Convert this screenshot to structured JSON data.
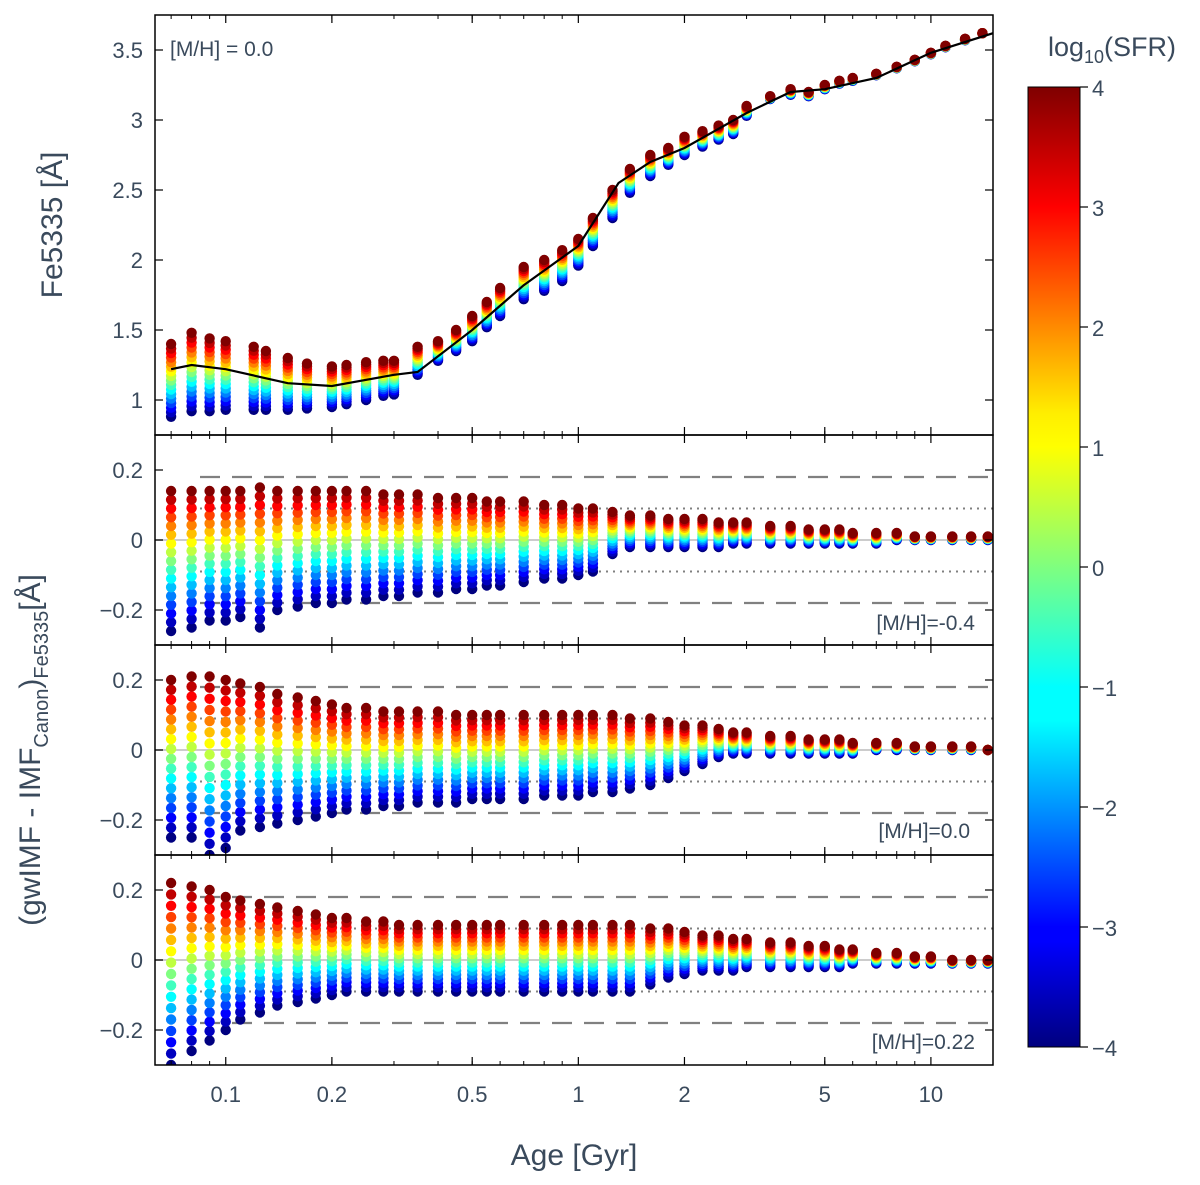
{
  "chart_data": {
    "type": "scatter",
    "colormap": "jet",
    "xlabel": "Age [Gyr]",
    "xscale": "log",
    "xlim": [
      0.063,
      15.0
    ],
    "x_ticks": [
      0.1,
      0.2,
      0.5,
      1,
      2,
      5,
      10
    ],
    "x_tick_labels": [
      "0.1",
      "0.2",
      "0.5",
      "1",
      "2",
      "5",
      "10"
    ],
    "colorbar": {
      "label_prefix": "log",
      "label_sub": "10",
      "label_suffix": "(SFR)",
      "range": [
        -4,
        4
      ],
      "ticks": [
        4,
        3,
        2,
        1,
        0,
        -1,
        -2,
        -3,
        -4
      ],
      "tick_labels": [
        "4",
        "3",
        "2",
        "1",
        "0",
        "−1",
        "−2",
        "−3",
        "−4"
      ]
    },
    "shared_ylabel": {
      "pre": "(gwIMF - IMF",
      "sub1": "Canon",
      "mid": ")",
      "sub2": "Fe5335",
      "post": "[Å]"
    },
    "sfr_levels": [
      -4,
      -3.5,
      -3,
      -2.5,
      -2,
      -1.5,
      -1,
      -0.5,
      0,
      0.5,
      1,
      1.5,
      2,
      2.5,
      3,
      3.5,
      4
    ],
    "panels": [
      {
        "id": "top",
        "ylabel": "Fe5335 [Å]",
        "annotation": "[M/H] = 0.0",
        "ylim": [
          0.75,
          3.75
        ],
        "y_ticks": [
          1,
          1.5,
          2,
          2.5,
          3,
          3.5
        ],
        "y_tick_labels": [
          "1",
          "1.5",
          "2",
          "2.5",
          "3",
          "3.5"
        ],
        "ref_line": {
          "age": [
            0.07,
            0.08,
            0.1,
            0.15,
            0.2,
            0.3,
            0.35,
            0.5,
            0.7,
            1.0,
            1.3,
            1.6,
            2.0,
            3.0,
            4.0,
            5.0,
            7.0,
            10.0,
            15.0
          ],
          "value": [
            1.22,
            1.25,
            1.22,
            1.12,
            1.1,
            1.18,
            1.2,
            1.5,
            1.82,
            2.1,
            2.55,
            2.7,
            2.8,
            3.05,
            3.2,
            3.22,
            3.3,
            3.48,
            3.62
          ]
        },
        "series_ages": [
          0.07,
          0.08,
          0.09,
          0.1,
          0.12,
          0.13,
          0.15,
          0.17,
          0.2,
          0.22,
          0.25,
          0.28,
          0.3,
          0.35,
          0.4,
          0.45,
          0.5,
          0.55,
          0.6,
          0.7,
          0.8,
          0.9,
          1.0,
          1.1,
          1.25,
          1.4,
          1.6,
          1.8,
          2.0,
          2.25,
          2.5,
          2.75,
          3.0,
          3.5,
          4.0,
          4.5,
          5.0,
          5.5,
          6.0,
          7.0,
          8.0,
          9.0,
          10.0,
          11.0,
          12.5,
          14.0
        ],
        "series_max": [
          1.4,
          1.48,
          1.44,
          1.42,
          1.38,
          1.35,
          1.3,
          1.26,
          1.24,
          1.25,
          1.27,
          1.28,
          1.28,
          1.38,
          1.42,
          1.5,
          1.6,
          1.7,
          1.8,
          1.95,
          2.0,
          2.07,
          2.15,
          2.3,
          2.5,
          2.65,
          2.75,
          2.8,
          2.88,
          2.92,
          2.96,
          3.0,
          3.1,
          3.17,
          3.22,
          3.2,
          3.25,
          3.28,
          3.3,
          3.33,
          3.38,
          3.43,
          3.48,
          3.53,
          3.58,
          3.62
        ],
        "series_min": [
          0.88,
          0.92,
          0.92,
          0.93,
          0.93,
          0.93,
          0.93,
          0.94,
          0.95,
          0.97,
          1.0,
          1.03,
          1.04,
          1.18,
          1.28,
          1.35,
          1.42,
          1.52,
          1.6,
          1.72,
          1.78,
          1.85,
          1.96,
          2.1,
          2.3,
          2.48,
          2.6,
          2.68,
          2.75,
          2.81,
          2.86,
          2.9,
          3.03,
          3.15,
          3.18,
          3.17,
          3.22,
          3.26,
          3.28,
          3.32,
          3.37,
          3.42,
          3.47,
          3.52,
          3.57,
          3.62
        ]
      },
      {
        "id": "p1",
        "annotation": "[M/H]=-0.4",
        "ylim": [
          -0.3,
          0.3
        ],
        "y_ticks": [
          0.2,
          0,
          -0.2
        ],
        "y_tick_labels": [
          "0.2",
          "0",
          "−0.2"
        ],
        "dashed": [
          0.18,
          -0.18
        ],
        "dotted": [
          0.09,
          -0.09
        ],
        "series_ages": [
          0.07,
          0.08,
          0.09,
          0.1,
          0.11,
          0.125,
          0.14,
          0.16,
          0.18,
          0.2,
          0.22,
          0.25,
          0.28,
          0.31,
          0.35,
          0.4,
          0.45,
          0.5,
          0.55,
          0.6,
          0.7,
          0.8,
          0.9,
          1.0,
          1.1,
          1.25,
          1.4,
          1.6,
          1.8,
          2.0,
          2.25,
          2.5,
          2.75,
          3.0,
          3.5,
          4.0,
          4.5,
          5.0,
          5.5,
          6.0,
          7.0,
          8.0,
          9.0,
          10.0,
          11.5,
          13.0,
          14.5
        ],
        "series_max": [
          0.14,
          0.14,
          0.14,
          0.14,
          0.14,
          0.15,
          0.14,
          0.14,
          0.14,
          0.14,
          0.14,
          0.14,
          0.13,
          0.13,
          0.13,
          0.12,
          0.12,
          0.12,
          0.11,
          0.11,
          0.11,
          0.1,
          0.1,
          0.09,
          0.09,
          0.08,
          0.07,
          0.07,
          0.06,
          0.06,
          0.06,
          0.05,
          0.05,
          0.05,
          0.04,
          0.04,
          0.03,
          0.03,
          0.03,
          0.02,
          0.02,
          0.02,
          0.01,
          0.01,
          0.01,
          0.01,
          0.01
        ],
        "series_min": [
          -0.26,
          -0.25,
          -0.23,
          -0.23,
          -0.22,
          -0.25,
          -0.2,
          -0.19,
          -0.18,
          -0.18,
          -0.17,
          -0.17,
          -0.16,
          -0.16,
          -0.15,
          -0.15,
          -0.14,
          -0.14,
          -0.13,
          -0.13,
          -0.12,
          -0.11,
          -0.11,
          -0.1,
          -0.09,
          -0.04,
          -0.02,
          -0.02,
          -0.02,
          -0.02,
          -0.02,
          -0.02,
          -0.01,
          -0.01,
          -0.01,
          -0.01,
          -0.01,
          -0.01,
          -0.01,
          -0.01,
          -0.01,
          0.0,
          0.0,
          0.0,
          0.0,
          0.0,
          0.0
        ]
      },
      {
        "id": "p2",
        "annotation": "[M/H]=0.0",
        "ylim": [
          -0.3,
          0.3
        ],
        "y_ticks": [
          0.2,
          0,
          -0.2
        ],
        "y_tick_labels": [
          "0.2",
          "0",
          "−0.2"
        ],
        "dashed": [
          0.18,
          -0.18
        ],
        "dotted": [
          0.09,
          -0.09
        ],
        "series_ages": [
          0.07,
          0.08,
          0.09,
          0.1,
          0.11,
          0.125,
          0.14,
          0.16,
          0.18,
          0.2,
          0.22,
          0.25,
          0.28,
          0.31,
          0.35,
          0.4,
          0.45,
          0.5,
          0.55,
          0.6,
          0.7,
          0.8,
          0.9,
          1.0,
          1.1,
          1.25,
          1.4,
          1.6,
          1.8,
          2.0,
          2.25,
          2.5,
          2.75,
          3.0,
          3.5,
          4.0,
          4.5,
          5.0,
          5.5,
          6.0,
          7.0,
          8.0,
          9.0,
          10.0,
          11.5,
          13.0,
          14.5
        ],
        "series_max": [
          0.2,
          0.21,
          0.21,
          0.2,
          0.19,
          0.18,
          0.16,
          0.15,
          0.14,
          0.13,
          0.12,
          0.12,
          0.11,
          0.11,
          0.11,
          0.11,
          0.1,
          0.1,
          0.1,
          0.1,
          0.1,
          0.1,
          0.1,
          0.1,
          0.1,
          0.1,
          0.09,
          0.09,
          0.08,
          0.07,
          0.07,
          0.06,
          0.05,
          0.05,
          0.04,
          0.04,
          0.03,
          0.03,
          0.03,
          0.02,
          0.02,
          0.02,
          0.01,
          0.01,
          0.01,
          0.01,
          0.0
        ],
        "series_min": [
          -0.25,
          -0.25,
          -0.3,
          -0.28,
          -0.23,
          -0.22,
          -0.21,
          -0.2,
          -0.19,
          -0.18,
          -0.17,
          -0.17,
          -0.16,
          -0.16,
          -0.15,
          -0.15,
          -0.15,
          -0.14,
          -0.14,
          -0.14,
          -0.14,
          -0.13,
          -0.13,
          -0.13,
          -0.12,
          -0.12,
          -0.11,
          -0.1,
          -0.08,
          -0.06,
          -0.04,
          -0.02,
          -0.01,
          -0.01,
          -0.01,
          -0.01,
          -0.01,
          -0.01,
          -0.01,
          -0.01,
          0.0,
          0.0,
          0.0,
          0.0,
          0.0,
          0.0,
          0.0
        ]
      },
      {
        "id": "p3",
        "annotation": "[M/H]=0.22",
        "ylim": [
          -0.3,
          0.3
        ],
        "y_ticks": [
          0.2,
          0,
          -0.2
        ],
        "y_tick_labels": [
          "0.2",
          "0",
          "−0.2"
        ],
        "dashed": [
          0.18,
          -0.18
        ],
        "dotted": [
          0.09,
          -0.09
        ],
        "series_ages": [
          0.07,
          0.08,
          0.09,
          0.1,
          0.11,
          0.125,
          0.14,
          0.16,
          0.18,
          0.2,
          0.22,
          0.25,
          0.28,
          0.31,
          0.35,
          0.4,
          0.45,
          0.5,
          0.55,
          0.6,
          0.7,
          0.8,
          0.9,
          1.0,
          1.1,
          1.25,
          1.4,
          1.6,
          1.8,
          2.0,
          2.25,
          2.5,
          2.75,
          3.0,
          3.5,
          4.0,
          4.5,
          5.0,
          5.5,
          6.0,
          7.0,
          8.0,
          9.0,
          10.0,
          11.5,
          13.0,
          14.5
        ],
        "series_max": [
          0.22,
          0.21,
          0.2,
          0.18,
          0.17,
          0.16,
          0.15,
          0.14,
          0.13,
          0.12,
          0.12,
          0.11,
          0.11,
          0.1,
          0.1,
          0.1,
          0.1,
          0.1,
          0.1,
          0.1,
          0.1,
          0.1,
          0.1,
          0.1,
          0.1,
          0.1,
          0.1,
          0.09,
          0.09,
          0.08,
          0.07,
          0.07,
          0.06,
          0.06,
          0.05,
          0.05,
          0.04,
          0.04,
          0.03,
          0.03,
          0.02,
          0.02,
          0.01,
          0.01,
          0.0,
          0.0,
          0.0
        ],
        "series_min": [
          -0.3,
          -0.26,
          -0.23,
          -0.2,
          -0.17,
          -0.15,
          -0.13,
          -0.12,
          -0.11,
          -0.1,
          -0.09,
          -0.09,
          -0.09,
          -0.09,
          -0.09,
          -0.09,
          -0.09,
          -0.09,
          -0.09,
          -0.09,
          -0.09,
          -0.09,
          -0.09,
          -0.09,
          -0.09,
          -0.09,
          -0.09,
          -0.07,
          -0.05,
          -0.04,
          -0.03,
          -0.03,
          -0.03,
          -0.02,
          -0.02,
          -0.02,
          -0.02,
          -0.02,
          -0.02,
          -0.01,
          -0.01,
          -0.01,
          -0.01,
          -0.01,
          -0.01,
          -0.01,
          -0.01
        ]
      }
    ]
  }
}
